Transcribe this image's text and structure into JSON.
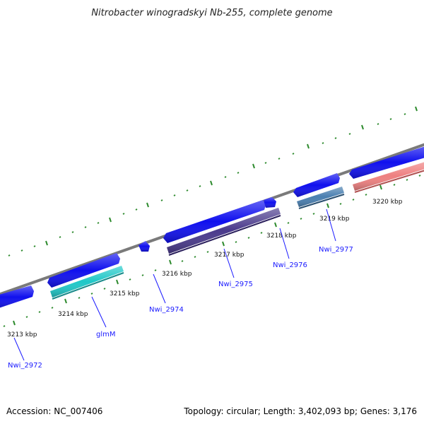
{
  "title": "Nitrobacter winogradskyi Nb-255, complete genome",
  "footer": {
    "accession": "Accession: NC_007406",
    "summary": "Topology: circular; Length: 3,402,093 bp; Genes: 3,176"
  },
  "scale_labels": [
    "3213 kbp",
    "3214 kbp",
    "3215 kbp",
    "3216 kbp",
    "3217 kbp",
    "3218 kbp",
    "3219 kbp",
    "3220 kbp"
  ],
  "gene_labels": [
    "Nwi_2972",
    "glmM",
    "Nwi_2974",
    "Nwi_2975",
    "Nwi_2976",
    "Nwi_2977"
  ],
  "colors": {
    "backbone": "#7a7a7a",
    "gene": "#1010ee",
    "cds_cyan": "#20c8c8",
    "cds_indigo": "#4a3a8c",
    "cds_steel": "#4a7fb0",
    "cds_pink": "#ee8080",
    "scale": "#2e8b2e",
    "label": "#1a1aff"
  }
}
